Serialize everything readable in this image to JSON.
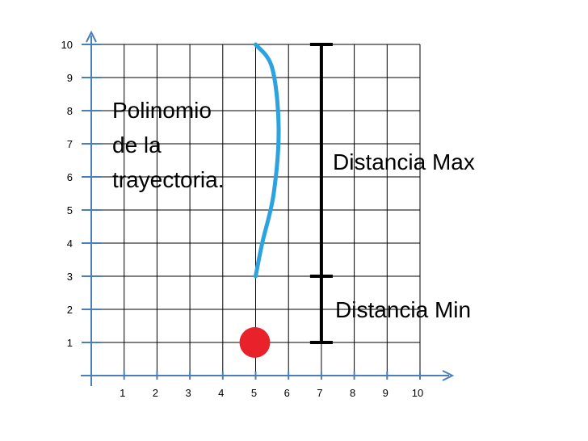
{
  "chart_data": {
    "type": "diagram",
    "xlim": [
      0,
      10
    ],
    "ylim": [
      0,
      10
    ],
    "x_ticks": [
      "1",
      "2",
      "3",
      "4",
      "5",
      "6",
      "7",
      "8",
      "9",
      "10"
    ],
    "y_ticks": [
      "1",
      "2",
      "3",
      "4",
      "5",
      "6",
      "7",
      "8",
      "9",
      "10"
    ],
    "grid": true,
    "trajectory_curve": {
      "color": "#2ca3df",
      "points": [
        [
          5,
          10
        ],
        [
          5.5,
          9.3
        ],
        [
          5.7,
          7.5
        ],
        [
          5.55,
          5.5
        ],
        [
          5.2,
          4
        ],
        [
          5,
          3
        ]
      ]
    },
    "marker_point": {
      "x": 5,
      "y": 1,
      "color": "#e8212a"
    },
    "distance_bar": {
      "x": 7,
      "y_bottom": 1,
      "y_mid": 3,
      "y_top": 10,
      "color": "#000000"
    },
    "annotations": {
      "polinomio": [
        "Polinomio",
        "de la",
        "trayectoria."
      ],
      "distancia_max": "Distancia Max",
      "distancia_min": "Distancia Min"
    }
  }
}
